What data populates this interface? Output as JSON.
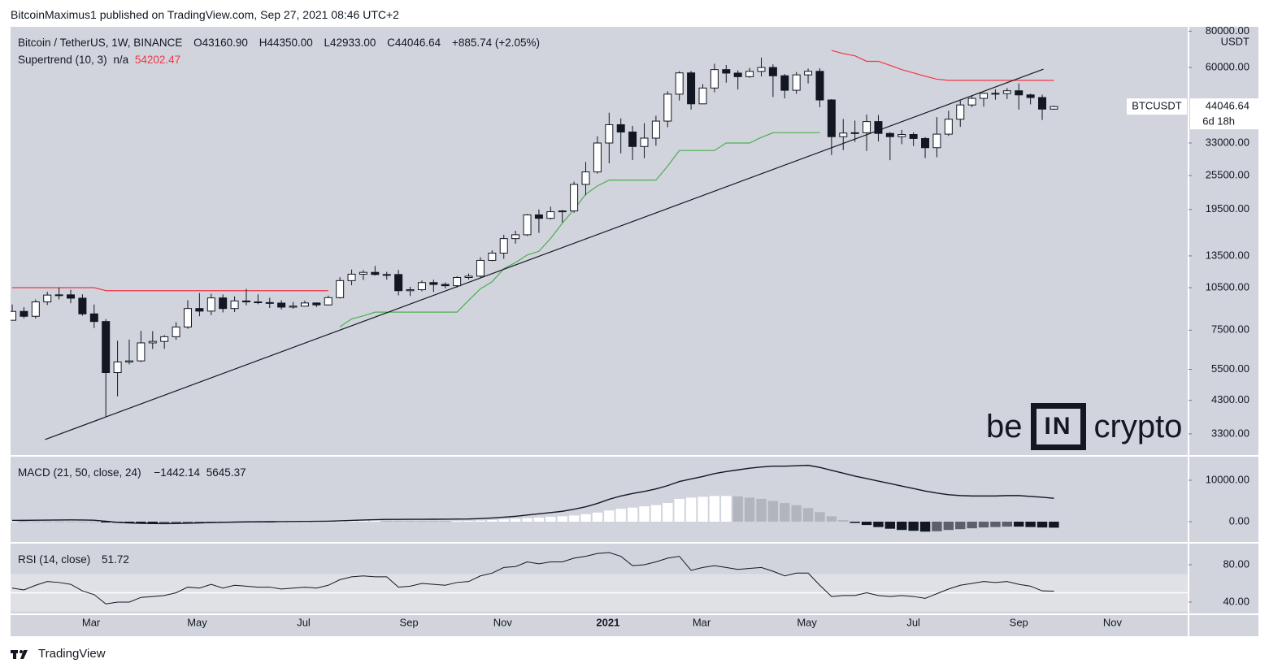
{
  "header": {
    "title": "BitcoinMaximus1 published on TradingView.com, Sep 27, 2021 08:46 UTC+2"
  },
  "footer": {
    "brand": "TradingView"
  },
  "watermark": {
    "left": "be",
    "box": "IN",
    "right": "crypto"
  },
  "chart_data": [
    {
      "type": "candlestick",
      "title": "Bitcoin / TetherUS, 1W, BINANCE",
      "ohlc_legend": [
        {
          "label": "O",
          "value": "43160.90"
        },
        {
          "label": "H",
          "value": "44350.00"
        },
        {
          "label": "L",
          "value": "42933.00"
        },
        {
          "label": "C",
          "value": "44046.64"
        }
      ],
      "change": "+885.74 (+2.05%)",
      "symbol": "BTCUSDT",
      "last_price": {
        "value": 44046.64,
        "label": "44046.64"
      },
      "countdown": "6d 18h",
      "unit": "USDT",
      "log": true,
      "ylim": [
        2790,
        82800
      ],
      "yticks": [
        {
          "value": 80000,
          "label": "80000.00"
        },
        {
          "value": 60000,
          "label": "60000.00"
        },
        {
          "value": 33000,
          "label": "33000.00"
        },
        {
          "value": 25500,
          "label": "25500.00"
        },
        {
          "value": 19500,
          "label": "19500.00"
        },
        {
          "value": 13500,
          "label": "13500.00"
        },
        {
          "value": 10500,
          "label": "10500.00"
        },
        {
          "value": 7500,
          "label": "7500.00"
        },
        {
          "value": 5500,
          "label": "5500.00"
        },
        {
          "value": 4300,
          "label": "4300.00"
        },
        {
          "value": 3300,
          "label": "3300.00"
        }
      ],
      "xlim": [
        -0.14,
        100.5
      ],
      "xticks": [
        {
          "value": 6.74,
          "label": "Mar"
        },
        {
          "value": 15.8,
          "label": "May"
        },
        {
          "value": 24.9,
          "label": "Jul"
        },
        {
          "value": 33.9,
          "label": "Sep"
        },
        {
          "value": 41.9,
          "label": "Nov"
        },
        {
          "value": 50.9,
          "label": "2021",
          "bold": true
        },
        {
          "value": 58.9,
          "label": "Mar"
        },
        {
          "value": 67.9,
          "label": "May"
        },
        {
          "value": 77,
          "label": "Jul"
        },
        {
          "value": 86,
          "label": "Sep"
        },
        {
          "value": 94,
          "label": "Nov"
        }
      ],
      "up_color": "#ffffff",
      "down_color": "#131722",
      "candles": [
        [
          8110,
          9190,
          8100,
          8700
        ],
        [
          8700,
          8990,
          8240,
          8370
        ],
        [
          8370,
          9560,
          8230,
          9380
        ],
        [
          9380,
          10160,
          9150,
          9900
        ],
        [
          9900,
          10500,
          9560,
          9920
        ],
        [
          9920,
          10320,
          9280,
          9660
        ],
        [
          9660,
          9960,
          8410,
          8530
        ],
        [
          8530,
          9190,
          7630,
          8030
        ],
        [
          8030,
          8180,
          3780,
          5360
        ],
        [
          5360,
          6900,
          4440,
          5830
        ],
        [
          5830,
          6960,
          5720,
          5880
        ],
        [
          5880,
          7460,
          5830,
          6780
        ],
        [
          6780,
          7440,
          6460,
          6860
        ],
        [
          6860,
          7210,
          6470,
          7120
        ],
        [
          7120,
          7990,
          6950,
          7690
        ],
        [
          7690,
          9500,
          7580,
          8900
        ],
        [
          8900,
          10060,
          8370,
          8720
        ],
        [
          8720,
          10000,
          8450,
          9680
        ],
        [
          9680,
          9950,
          8630,
          8900
        ],
        [
          8900,
          9800,
          8660,
          9450
        ],
        [
          9450,
          10400,
          9130,
          9380
        ],
        [
          9380,
          9960,
          9210,
          9330
        ],
        [
          9330,
          9690,
          8940,
          9290
        ],
        [
          9290,
          9500,
          8830,
          9000
        ],
        [
          9000,
          9370,
          8890,
          9070
        ],
        [
          9070,
          9470,
          9050,
          9300
        ],
        [
          9300,
          9330,
          9000,
          9160
        ],
        [
          9160,
          9860,
          9120,
          9700
        ],
        [
          9700,
          11400,
          9630,
          11100
        ],
        [
          11100,
          12120,
          10700,
          11680
        ],
        [
          11680,
          12070,
          11150,
          11850
        ],
        [
          11850,
          12470,
          11560,
          11650
        ],
        [
          11650,
          11900,
          11180,
          11650
        ],
        [
          11650,
          12080,
          9880,
          10250
        ],
        [
          10250,
          10570,
          9830,
          10330
        ],
        [
          10330,
          11100,
          10200,
          10930
        ],
        [
          10930,
          11180,
          10140,
          10770
        ],
        [
          10770,
          10940,
          10440,
          10660
        ],
        [
          10660,
          11490,
          10500,
          11380
        ],
        [
          11380,
          11740,
          11200,
          11500
        ],
        [
          11500,
          13350,
          11300,
          13030
        ],
        [
          13030,
          14100,
          12960,
          13800
        ],
        [
          13800,
          15960,
          13200,
          15480
        ],
        [
          15480,
          16480,
          14880,
          15960
        ],
        [
          15960,
          18800,
          15800,
          18680
        ],
        [
          18680,
          19500,
          16200,
          18180
        ],
        [
          18180,
          19920,
          18000,
          19150
        ],
        [
          19150,
          19420,
          17580,
          19270
        ],
        [
          19270,
          24300,
          19000,
          23780
        ],
        [
          23780,
          28400,
          21800,
          26250
        ],
        [
          26250,
          34800,
          25900,
          33000
        ],
        [
          33000,
          41950,
          28100,
          38150
        ],
        [
          38150,
          40100,
          30400,
          36000
        ],
        [
          36000,
          37800,
          28850,
          32100
        ],
        [
          32100,
          38600,
          29250,
          34300
        ],
        [
          34300,
          40950,
          32300,
          39250
        ],
        [
          39250,
          49700,
          37400,
          48580
        ],
        [
          48580,
          58300,
          46200,
          57490
        ],
        [
          57490,
          58400,
          43000,
          45000
        ],
        [
          45000,
          52600,
          44900,
          51000
        ],
        [
          51000,
          61800,
          49300,
          59000
        ],
        [
          59000,
          61200,
          53200,
          57400
        ],
        [
          57400,
          58700,
          50400,
          55800
        ],
        [
          55800,
          59800,
          55300,
          58200
        ],
        [
          58200,
          64900,
          55900,
          60000
        ],
        [
          60000,
          61500,
          47500,
          56200
        ],
        [
          56200,
          57000,
          47000,
          50100
        ],
        [
          50100,
          57900,
          48700,
          56600
        ],
        [
          56600,
          59500,
          52900,
          58200
        ],
        [
          58200,
          59600,
          43800,
          46400
        ],
        [
          46400,
          46700,
          30000,
          34700
        ],
        [
          34700,
          39900,
          31200,
          35700
        ],
        [
          35700,
          39400,
          33300,
          35800
        ],
        [
          35800,
          41300,
          31000,
          39100
        ],
        [
          39100,
          41200,
          33400,
          35600
        ],
        [
          35600,
          36000,
          28800,
          34700
        ],
        [
          34700,
          36600,
          32700,
          35300
        ],
        [
          35300,
          35900,
          32200,
          34200
        ],
        [
          34200,
          34600,
          29300,
          31800
        ],
        [
          31800,
          40500,
          29500,
          35400
        ],
        [
          35400,
          42600,
          34900,
          39850
        ],
        [
          39850,
          46200,
          37500,
          44600
        ],
        [
          44600,
          48100,
          43800,
          47000
        ],
        [
          47000,
          49200,
          44000,
          48900
        ],
        [
          48900,
          50500,
          46500,
          48800
        ],
        [
          48800,
          51000,
          46700,
          49900
        ],
        [
          49900,
          52900,
          43000,
          48300
        ],
        [
          48300,
          48800,
          44800,
          47300
        ],
        [
          47300,
          48400,
          39600,
          43160.9
        ],
        [
          43160.9,
          44350,
          42933,
          44046.64
        ]
      ],
      "supertrend": {
        "name": "Supertrend (10, 3)",
        "status": "n/a",
        "value_label": "54202.47",
        "up_color": "#4caf50",
        "down_color": "#f23645",
        "up": [
          null,
          null,
          null,
          null,
          null,
          null,
          null,
          null,
          null,
          null,
          null,
          null,
          null,
          null,
          null,
          null,
          null,
          null,
          null,
          null,
          null,
          null,
          null,
          null,
          null,
          null,
          null,
          null,
          7700,
          8200,
          8400,
          8650,
          8650,
          8650,
          8650,
          8650,
          8650,
          8650,
          8650,
          9500,
          10400,
          11000,
          12200,
          12800,
          13600,
          14000,
          15500,
          17500,
          19500,
          22000,
          23500,
          24600,
          24600,
          24600,
          24600,
          24600,
          27500,
          31100,
          31100,
          31100,
          31100,
          33000,
          33000,
          33000,
          34500,
          35800,
          35800,
          35800,
          35800,
          35800,
          null,
          null,
          null,
          null,
          null,
          null,
          null,
          null,
          null,
          null,
          null,
          null,
          null,
          null,
          null,
          null,
          null,
          null,
          null,
          null
        ],
        "down": [
          10500,
          10500,
          10500,
          10500,
          10500,
          10500,
          10500,
          10500,
          10250,
          10250,
          10250,
          10250,
          10250,
          10250,
          10250,
          10250,
          10250,
          10250,
          10250,
          10250,
          10250,
          10250,
          10250,
          10250,
          10250,
          10250,
          10250,
          10250,
          null,
          null,
          null,
          null,
          null,
          null,
          null,
          null,
          null,
          null,
          null,
          null,
          null,
          null,
          null,
          null,
          null,
          null,
          null,
          null,
          null,
          null,
          null,
          null,
          null,
          null,
          null,
          null,
          null,
          null,
          null,
          null,
          null,
          null,
          null,
          null,
          null,
          null,
          null,
          null,
          null,
          null,
          68700,
          67000,
          65800,
          63000,
          63000,
          61000,
          59000,
          57500,
          56000,
          54700,
          54202.47,
          54202.47,
          54202.47,
          54202.47,
          54202.47,
          54202.47,
          54202.47,
          54202.47,
          54202.47,
          54202.47
        ]
      },
      "trendline": {
        "x": [
          2.8,
          88.1
        ],
        "y": [
          3155,
          59200
        ],
        "color": "#131722"
      }
    },
    {
      "type": "macd",
      "title": "MACD (21, 50, close, 24)",
      "ylim": [
        -4902,
        15686
      ],
      "yticks": [
        {
          "value": 10000,
          "label": "10000.00"
        },
        {
          "value": 0,
          "label": "0.00"
        }
      ],
      "histogram": {
        "value_label": "−1442.14",
        "colors": {
          "rise_pos": "#ffffff",
          "fall_pos": "#b2b5be",
          "grow_neg": "#131722",
          "fall_neg": "#5d606b"
        },
        "values": [
          100,
          90,
          80,
          70,
          60,
          50,
          40,
          30,
          -150,
          -250,
          -320,
          -360,
          -380,
          -370,
          -340,
          -300,
          -250,
          -200,
          -150,
          -110,
          -80,
          -50,
          -30,
          0,
          10,
          20,
          40,
          80,
          120,
          180,
          220,
          250,
          230,
          200,
          180,
          160,
          150,
          140,
          150,
          200,
          280,
          400,
          550,
          700,
          850,
          1000,
          1150,
          1300,
          1500,
          1800,
          2200,
          2700,
          3100,
          3400,
          3700,
          4000,
          4500,
          5500,
          5800,
          6000,
          6200,
          6200,
          6100,
          5800,
          5500,
          5000,
          4500,
          4000,
          3300,
          2300,
          1300,
          400,
          -300,
          -800,
          -1300,
          -1700,
          -2000,
          -2200,
          -2400,
          -2300,
          -2000,
          -1800,
          -1600,
          -1400,
          -1300,
          -1200,
          -1200,
          -1300,
          -1400,
          -1442.14
        ]
      },
      "macd": {
        "value_label": "5645.37",
        "color": "#131722",
        "values": [
          300,
          320,
          350,
          380,
          400,
          420,
          400,
          350,
          100,
          -150,
          -300,
          -400,
          -450,
          -480,
          -450,
          -380,
          -300,
          -200,
          -150,
          -100,
          -50,
          -20,
          0,
          20,
          40,
          60,
          80,
          120,
          200,
          300,
          400,
          480,
          550,
          560,
          570,
          580,
          590,
          600,
          620,
          650,
          750,
          900,
          1100,
          1300,
          1600,
          1900,
          2200,
          2500,
          3000,
          3600,
          4400,
          5400,
          6200,
          6800,
          7300,
          7900,
          8700,
          9700,
          10300,
          10900,
          11600,
          12100,
          12500,
          12900,
          13200,
          13400,
          13400,
          13500,
          13600,
          13100,
          12400,
          11700,
          11000,
          10400,
          9800,
          9200,
          8600,
          8000,
          7400,
          6900,
          6500,
          6300,
          6200,
          6200,
          6200,
          6300,
          6300,
          6100,
          5900,
          5645.37
        ]
      }
    },
    {
      "type": "rsi",
      "title": "RSI (14, close)",
      "value_label": "51.72",
      "color": "#131722",
      "ylim": [
        27.8,
        101.7
      ],
      "yticks": [
        {
          "value": 80,
          "label": "80.00"
        },
        {
          "value": 40,
          "label": "40.00"
        }
      ],
      "band": [
        30,
        70
      ],
      "midline": 50,
      "values": [
        55,
        53,
        58,
        62,
        61,
        59,
        52,
        48,
        38,
        40,
        40,
        45,
        46,
        47,
        50,
        56,
        55,
        59,
        55,
        58,
        57,
        56,
        56,
        54,
        55,
        56,
        55,
        58,
        64,
        67,
        68,
        67,
        67,
        56,
        57,
        60,
        59,
        58,
        61,
        62,
        68,
        71,
        77,
        78,
        83,
        81,
        83,
        83,
        87,
        89,
        92,
        93,
        89,
        79,
        80,
        83,
        87,
        89,
        74,
        77,
        79,
        77,
        75,
        76,
        77,
        73,
        68,
        71,
        71,
        58,
        46,
        47,
        47,
        50,
        47,
        46,
        47,
        46,
        44,
        49,
        54,
        58,
        60,
        62,
        61,
        62,
        59,
        57,
        52,
        51.72
      ]
    }
  ]
}
